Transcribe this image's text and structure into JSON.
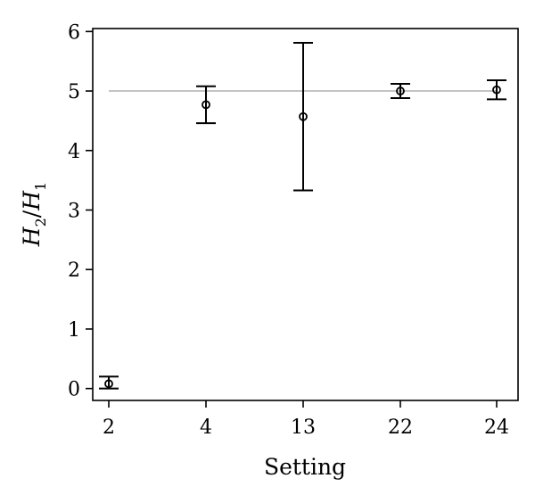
{
  "chart_data": {
    "type": "scatter",
    "categories": [
      "2",
      "4",
      "13",
      "22",
      "24"
    ],
    "series": [
      {
        "values": [
          0.08,
          4.77,
          4.57,
          5.0,
          5.02
        ],
        "error_low": [
          0.0,
          4.46,
          3.33,
          4.88,
          4.86
        ],
        "error_high": [
          0.2,
          5.08,
          5.81,
          5.12,
          5.18
        ]
      }
    ],
    "reference_line": {
      "y": 5,
      "color": "#b0b0b0"
    },
    "xlabel": "Setting",
    "ylabel": {
      "numerator": "H",
      "num_sub": "2",
      "denominator": "H",
      "den_sub": "1"
    },
    "ylim": [
      -0.2,
      6.05
    ],
    "yticks": [
      "0",
      "1",
      "2",
      "3",
      "4",
      "5",
      "6"
    ],
    "grid": false,
    "colors": {
      "marks": "#000000",
      "reference": "#b0b0b0"
    }
  }
}
